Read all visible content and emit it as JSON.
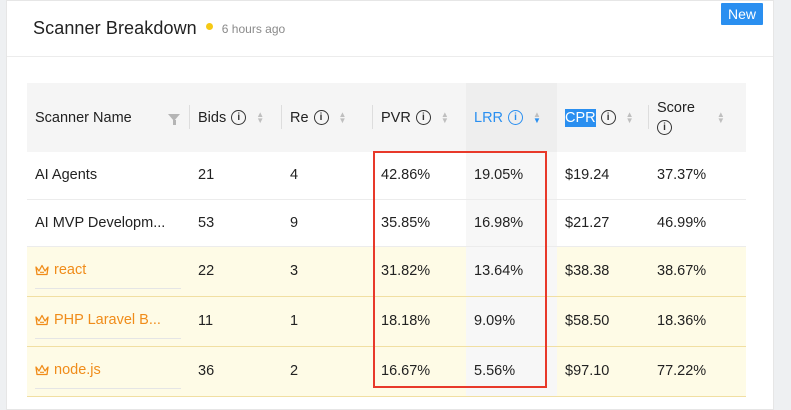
{
  "header": {
    "title": "Scanner Breakdown",
    "time": "6 hours ago"
  },
  "badge": {
    "label": "New"
  },
  "columns": {
    "name": "Scanner Name",
    "bids": "Bids",
    "re": "Re",
    "pvr": "PVR",
    "lrr": "LRR",
    "cpr": "CPR",
    "score": "Score",
    "info_glyph": "i"
  },
  "rows": [
    {
      "name": "AI Agents",
      "bids": "21",
      "re": "4",
      "pvr": "42.86%",
      "lrr": "19.05%",
      "cpr": "$19.24",
      "score": "37.37%"
    },
    {
      "name": "AI MVP Developm...",
      "bids": "53",
      "re": "9",
      "pvr": "35.85%",
      "lrr": "16.98%",
      "cpr": "$21.27",
      "score": "46.99%"
    },
    {
      "name": "react",
      "bids": "22",
      "re": "3",
      "pvr": "31.82%",
      "lrr": "13.64%",
      "cpr": "$38.38",
      "score": "38.67%"
    },
    {
      "name": "PHP Laravel B...",
      "bids": "11",
      "re": "1",
      "pvr": "18.18%",
      "lrr": "9.09%",
      "cpr": "$58.50",
      "score": "18.36%"
    },
    {
      "name": "node.js",
      "bids": "36",
      "re": "2",
      "pvr": "16.67%",
      "lrr": "5.56%",
      "cpr": "$97.10",
      "score": "77.22%"
    }
  ],
  "colors": {
    "accent": "#2a8ff0",
    "highlight_row": "#fefbe6",
    "link": "#f08c1a",
    "annotation": "#e8392a",
    "dot": "#f6c914"
  },
  "icons": {
    "crown": "crown-icon",
    "filter": "filter-icon",
    "info": "info-icon",
    "sort": "sort-icon"
  }
}
